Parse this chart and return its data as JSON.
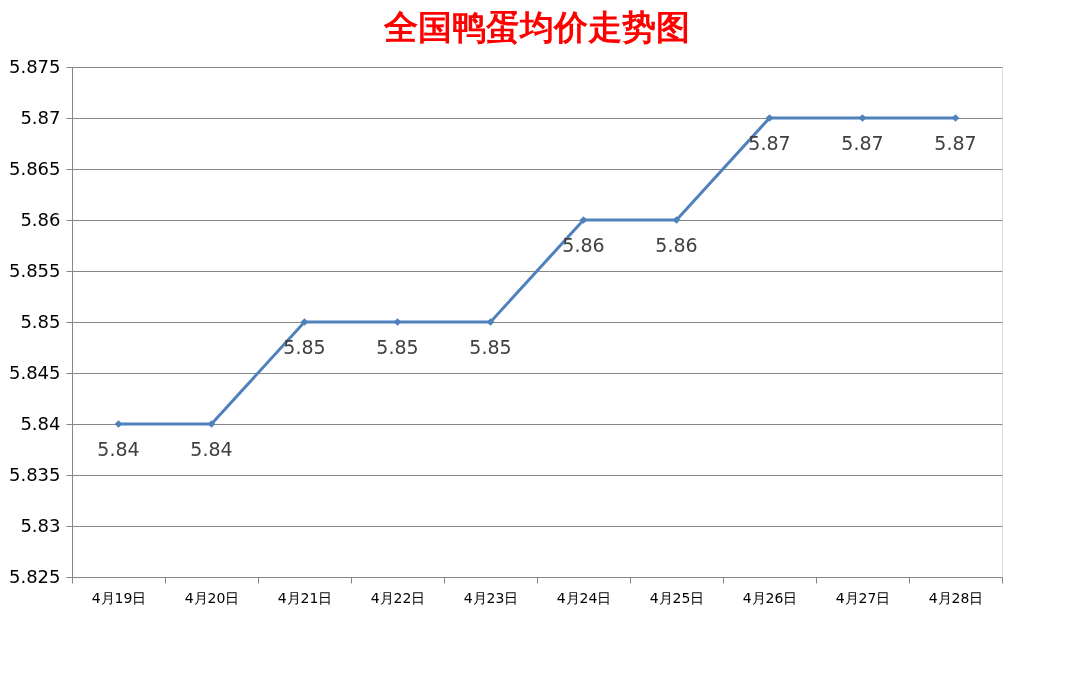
{
  "chart_data": {
    "type": "line",
    "title": "全国鸭蛋均价走势图",
    "categories": [
      "4月19日",
      "4月20日",
      "4月21日",
      "4月22日",
      "4月23日",
      "4月24日",
      "4月25日",
      "4月26日",
      "4月27日",
      "4月28日"
    ],
    "series": [
      {
        "color": "#4f81bd",
        "values": [
          5.84,
          5.84,
          5.85,
          5.85,
          5.85,
          5.86,
          5.86,
          5.87,
          5.87,
          5.87
        ]
      }
    ],
    "ylim": [
      5.825,
      5.875
    ],
    "yticks": [
      5.825,
      5.83,
      5.835,
      5.84,
      5.845,
      5.85,
      5.855,
      5.86,
      5.865,
      5.87,
      5.875
    ],
    "grid": "y",
    "marker": "diamond",
    "line_style": "solid",
    "data_labels": true,
    "legend": false
  }
}
